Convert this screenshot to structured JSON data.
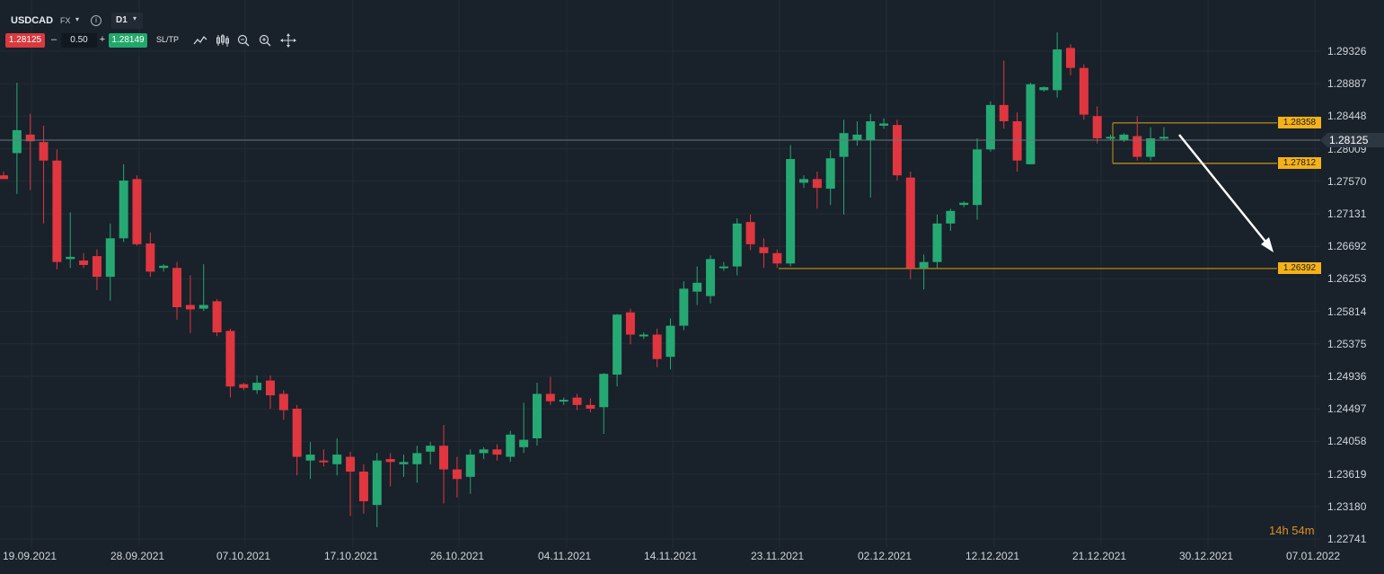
{
  "toolbar": {
    "symbol": "USDCAD",
    "market": "FX",
    "market_caret": "▾",
    "info_glyph": "i",
    "timeframe": "D1",
    "timeframe_caret": "▾",
    "bid": "1.28125",
    "minus": "–",
    "lot": "0.50",
    "plus": "+",
    "ask": "1.28149",
    "sltp": "SL/TP",
    "icons": [
      "line-chart-icon",
      "candles-icon",
      "zoom-out-icon",
      "zoom-in-icon",
      "crosshair-icon"
    ]
  },
  "price_axis": [
    "1.29326",
    "1.28887",
    "1.28448",
    "1.28009",
    "1.27570",
    "1.27131",
    "1.26692",
    "1.26253",
    "1.25814",
    "1.25375",
    "1.24936",
    "1.24497",
    "1.24058",
    "1.23619",
    "1.23180",
    "1.22741"
  ],
  "date_axis": [
    "19.09.2021",
    "28.09.2021",
    "07.10.2021",
    "17.10.2021",
    "26.10.2021",
    "04.11.2021",
    "14.11.2021",
    "23.11.2021",
    "02.12.2021",
    "12.12.2021",
    "21.12.2021",
    "30.12.2021",
    "07.01.2022"
  ],
  "current_price": "1.28125",
  "levels": [
    {
      "value": "1.28358",
      "price": 1.28358
    },
    {
      "value": "1.27812",
      "price": 1.27812
    },
    {
      "value": "1.26392",
      "price": 1.26392
    }
  ],
  "countdown": "14h 54m",
  "colors": {
    "bull": "#26a873",
    "bear": "#e0363f",
    "level": "#c8951a",
    "bg": "#19212a"
  },
  "chart_data": {
    "type": "candlestick",
    "symbol": "USDCAD",
    "timeframe": "D1",
    "ylim": [
      1.226,
      1.2975
    ],
    "current_price": 1.28125,
    "candles": [
      {
        "o": 1.2765,
        "h": 1.277,
        "l": 1.276,
        "c": 1.276
      },
      {
        "o": 1.2795,
        "h": 1.289,
        "l": 1.274,
        "c": 1.2826
      },
      {
        "o": 1.282,
        "h": 1.2848,
        "l": 1.2745,
        "c": 1.2811
      },
      {
        "o": 1.281,
        "h": 1.2832,
        "l": 1.27,
        "c": 1.2785
      },
      {
        "o": 1.2785,
        "h": 1.28,
        "l": 1.2638,
        "c": 1.2648
      },
      {
        "o": 1.2652,
        "h": 1.2715,
        "l": 1.264,
        "c": 1.2655
      },
      {
        "o": 1.265,
        "h": 1.266,
        "l": 1.264,
        "c": 1.2644
      },
      {
        "o": 1.2656,
        "h": 1.2665,
        "l": 1.261,
        "c": 1.2628
      },
      {
        "o": 1.2628,
        "h": 1.27,
        "l": 1.2596,
        "c": 1.268
      },
      {
        "o": 1.268,
        "h": 1.278,
        "l": 1.2675,
        "c": 1.2758
      },
      {
        "o": 1.276,
        "h": 1.2765,
        "l": 1.267,
        "c": 1.2672
      },
      {
        "o": 1.2673,
        "h": 1.2688,
        "l": 1.2628,
        "c": 1.2635
      },
      {
        "o": 1.264,
        "h": 1.2645,
        "l": 1.2635,
        "c": 1.2643
      },
      {
        "o": 1.264,
        "h": 1.2648,
        "l": 1.257,
        "c": 1.2587
      },
      {
        "o": 1.259,
        "h": 1.263,
        "l": 1.2552,
        "c": 1.2584
      },
      {
        "o": 1.2585,
        "h": 1.2645,
        "l": 1.2582,
        "c": 1.259
      },
      {
        "o": 1.2595,
        "h": 1.2598,
        "l": 1.2548,
        "c": 1.2553
      },
      {
        "o": 1.2555,
        "h": 1.2558,
        "l": 1.2465,
        "c": 1.248
      },
      {
        "o": 1.2483,
        "h": 1.2485,
        "l": 1.2475,
        "c": 1.2478
      },
      {
        "o": 1.2475,
        "h": 1.2495,
        "l": 1.247,
        "c": 1.2485
      },
      {
        "o": 1.2488,
        "h": 1.2495,
        "l": 1.245,
        "c": 1.2468
      },
      {
        "o": 1.247,
        "h": 1.2475,
        "l": 1.2435,
        "c": 1.2448
      },
      {
        "o": 1.245,
        "h": 1.2455,
        "l": 1.236,
        "c": 1.2385
      },
      {
        "o": 1.238,
        "h": 1.2405,
        "l": 1.2355,
        "c": 1.2388
      },
      {
        "o": 1.238,
        "h": 1.2395,
        "l": 1.2372,
        "c": 1.2378
      },
      {
        "o": 1.2375,
        "h": 1.241,
        "l": 1.236,
        "c": 1.2388
      },
      {
        "o": 1.2385,
        "h": 1.2392,
        "l": 1.2305,
        "c": 1.2365
      },
      {
        "o": 1.2365,
        "h": 1.2375,
        "l": 1.2308,
        "c": 1.2325
      },
      {
        "o": 1.232,
        "h": 1.239,
        "l": 1.229,
        "c": 1.238
      },
      {
        "o": 1.2382,
        "h": 1.239,
        "l": 1.2345,
        "c": 1.2378
      },
      {
        "o": 1.2375,
        "h": 1.2388,
        "l": 1.2358,
        "c": 1.2378
      },
      {
        "o": 1.2375,
        "h": 1.24,
        "l": 1.235,
        "c": 1.239
      },
      {
        "o": 1.2392,
        "h": 1.2405,
        "l": 1.2375,
        "c": 1.24
      },
      {
        "o": 1.24,
        "h": 1.2428,
        "l": 1.2322,
        "c": 1.2368
      },
      {
        "o": 1.2368,
        "h": 1.2385,
        "l": 1.233,
        "c": 1.2355
      },
      {
        "o": 1.2358,
        "h": 1.2395,
        "l": 1.2335,
        "c": 1.2388
      },
      {
        "o": 1.239,
        "h": 1.2398,
        "l": 1.2382,
        "c": 1.2395
      },
      {
        "o": 1.2395,
        "h": 1.2402,
        "l": 1.238,
        "c": 1.2388
      },
      {
        "o": 1.2385,
        "h": 1.242,
        "l": 1.2378,
        "c": 1.2415
      },
      {
        "o": 1.2398,
        "h": 1.2458,
        "l": 1.239,
        "c": 1.2408
      },
      {
        "o": 1.241,
        "h": 1.2485,
        "l": 1.24,
        "c": 1.247
      },
      {
        "o": 1.247,
        "h": 1.2493,
        "l": 1.2455,
        "c": 1.246
      },
      {
        "o": 1.246,
        "h": 1.2465,
        "l": 1.2455,
        "c": 1.2462
      },
      {
        "o": 1.2465,
        "h": 1.247,
        "l": 1.2448,
        "c": 1.2455
      },
      {
        "o": 1.2455,
        "h": 1.2464,
        "l": 1.2445,
        "c": 1.245
      },
      {
        "o": 1.2452,
        "h": 1.2498,
        "l": 1.2416,
        "c": 1.2497
      },
      {
        "o": 1.2496,
        "h": 1.2578,
        "l": 1.248,
        "c": 1.2577
      },
      {
        "o": 1.258,
        "h": 1.2585,
        "l": 1.2537,
        "c": 1.255
      },
      {
        "o": 1.2548,
        "h": 1.2553,
        "l": 1.2544,
        "c": 1.255
      },
      {
        "o": 1.255,
        "h": 1.2558,
        "l": 1.2506,
        "c": 1.2517
      },
      {
        "o": 1.252,
        "h": 1.2572,
        "l": 1.2503,
        "c": 1.2562
      },
      {
        "o": 1.2562,
        "h": 1.2622,
        "l": 1.2556,
        "c": 1.2612
      },
      {
        "o": 1.2608,
        "h": 1.2642,
        "l": 1.259,
        "c": 1.262
      },
      {
        "o": 1.2602,
        "h": 1.2657,
        "l": 1.2592,
        "c": 1.2652
      },
      {
        "o": 1.264,
        "h": 1.2648,
        "l": 1.2636,
        "c": 1.2642
      },
      {
        "o": 1.2642,
        "h": 1.2707,
        "l": 1.263,
        "c": 1.27
      },
      {
        "o": 1.2702,
        "h": 1.2712,
        "l": 1.2664,
        "c": 1.2672
      },
      {
        "o": 1.2668,
        "h": 1.268,
        "l": 1.264,
        "c": 1.266
      },
      {
        "o": 1.266,
        "h": 1.2665,
        "l": 1.264,
        "c": 1.2646
      },
      {
        "o": 1.2646,
        "h": 1.2806,
        "l": 1.2642,
        "c": 1.2787
      },
      {
        "o": 1.2755,
        "h": 1.2765,
        "l": 1.2748,
        "c": 1.276
      },
      {
        "o": 1.276,
        "h": 1.277,
        "l": 1.272,
        "c": 1.2748
      },
      {
        "o": 1.2747,
        "h": 1.2799,
        "l": 1.2725,
        "c": 1.2788
      },
      {
        "o": 1.279,
        "h": 1.284,
        "l": 1.2712,
        "c": 1.2822
      },
      {
        "o": 1.2812,
        "h": 1.2838,
        "l": 1.2805,
        "c": 1.282
      },
      {
        "o": 1.2812,
        "h": 1.2848,
        "l": 1.2735,
        "c": 1.2838
      },
      {
        "o": 1.2832,
        "h": 1.2842,
        "l": 1.2828,
        "c": 1.2835
      },
      {
        "o": 1.2833,
        "h": 1.284,
        "l": 1.2758,
        "c": 1.2765
      },
      {
        "o": 1.2762,
        "h": 1.277,
        "l": 1.2625,
        "c": 1.264
      },
      {
        "o": 1.264,
        "h": 1.2658,
        "l": 1.2611,
        "c": 1.2648
      },
      {
        "o": 1.2648,
        "h": 1.2712,
        "l": 1.264,
        "c": 1.27
      },
      {
        "o": 1.27,
        "h": 1.272,
        "l": 1.269,
        "c": 1.2717
      },
      {
        "o": 1.2725,
        "h": 1.273,
        "l": 1.2722,
        "c": 1.2728
      },
      {
        "o": 1.2725,
        "h": 1.2815,
        "l": 1.2705,
        "c": 1.28
      },
      {
        "o": 1.28,
        "h": 1.2865,
        "l": 1.2797,
        "c": 1.286
      },
      {
        "o": 1.286,
        "h": 1.292,
        "l": 1.2828,
        "c": 1.2838
      },
      {
        "o": 1.2838,
        "h": 1.285,
        "l": 1.277,
        "c": 1.2785
      },
      {
        "o": 1.278,
        "h": 1.289,
        "l": 1.278,
        "c": 1.2888
      },
      {
        "o": 1.288,
        "h": 1.2885,
        "l": 1.2878,
        "c": 1.2884
      },
      {
        "o": 1.288,
        "h": 1.2958,
        "l": 1.287,
        "c": 1.2935
      },
      {
        "o": 1.2937,
        "h": 1.2942,
        "l": 1.29,
        "c": 1.291
      },
      {
        "o": 1.291,
        "h": 1.2915,
        "l": 1.284,
        "c": 1.2847
      },
      {
        "o": 1.2845,
        "h": 1.2858,
        "l": 1.2808,
        "c": 1.2815
      },
      {
        "o": 1.2815,
        "h": 1.282,
        "l": 1.2812,
        "c": 1.2817
      },
      {
        "o": 1.2812,
        "h": 1.2822,
        "l": 1.281,
        "c": 1.282
      },
      {
        "o": 1.2818,
        "h": 1.2845,
        "l": 1.2785,
        "c": 1.279
      },
      {
        "o": 1.279,
        "h": 1.283,
        "l": 1.2785,
        "c": 1.2815
      },
      {
        "o": 1.2816,
        "h": 1.283,
        "l": 1.2812,
        "c": 1.2817
      }
    ],
    "horizontal_levels": [
      1.28358,
      1.27812,
      1.26392
    ]
  }
}
